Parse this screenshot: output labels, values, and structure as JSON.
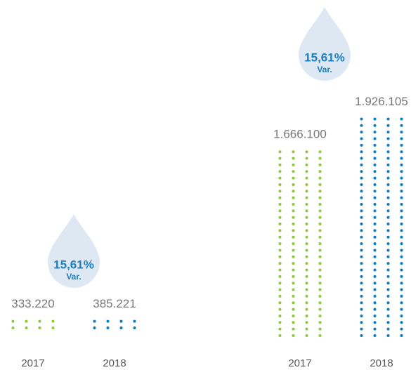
{
  "chart_data": [
    {
      "type": "dotbar",
      "categories": [
        "2017",
        "2018"
      ],
      "values": [
        333220,
        385221
      ],
      "value_labels": [
        "333.220",
        "385.221"
      ],
      "colors": [
        "#8dc63f",
        "#0a7bbd"
      ],
      "annotation": "15,61%",
      "annotation_sub": "Var."
    },
    {
      "type": "dotbar",
      "categories": [
        "2017",
        "2018"
      ],
      "values": [
        1666100,
        1926105
      ],
      "value_labels": [
        "1.666.100",
        "1.926.105"
      ],
      "colors": [
        "#8dc63f",
        "#0a7bbd"
      ],
      "annotation": "15,61%",
      "annotation_sub": "Var."
    }
  ]
}
